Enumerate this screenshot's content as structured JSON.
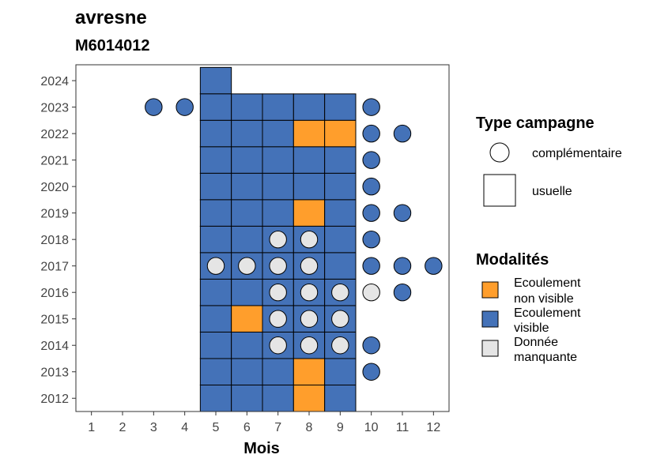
{
  "chart_data": {
    "type": "heatmap",
    "title": "avresne",
    "subtitle": "M6014012",
    "xlabel": "Mois",
    "ylabel": "",
    "x_ticks": [
      "1",
      "2",
      "3",
      "4",
      "5",
      "6",
      "7",
      "8",
      "9",
      "10",
      "11",
      "12"
    ],
    "y_ticks": [
      "2012",
      "2013",
      "2014",
      "2015",
      "2016",
      "2017",
      "2018",
      "2019",
      "2020",
      "2021",
      "2022",
      "2023",
      "2024"
    ],
    "xlim": [
      0.5,
      12.5
    ],
    "ylim": [
      2011.5,
      2024.6
    ],
    "grid": false,
    "legend_position": "right",
    "colors": {
      "Ecoulement non visible": "#FF9E2C",
      "Ecoulement visible": "#4472B8",
      "Donnée manquante": "#E5E5E5"
    },
    "legend": {
      "type_title": "Type campagne",
      "types": [
        {
          "shape": "circle",
          "label": "complémentaire"
        },
        {
          "shape": "square",
          "label": "usuelle"
        }
      ],
      "modalites_title": "Modalités",
      "modalites": [
        {
          "key": "Ecoulement non visible",
          "lines": [
            "Ecoulement",
            "non visible"
          ]
        },
        {
          "key": "Ecoulement visible",
          "lines": [
            "Ecoulement",
            "visible"
          ]
        },
        {
          "key": "Donnée manquante",
          "lines": [
            "Donnée",
            "manquante"
          ]
        }
      ]
    },
    "usuelle": [
      {
        "year": 2024,
        "months": [
          5
        ],
        "values": [
          "Ecoulement visible"
        ]
      },
      {
        "year": 2023,
        "months": [
          5,
          6,
          7,
          8,
          9
        ],
        "values": [
          "Ecoulement visible",
          "Ecoulement visible",
          "Ecoulement visible",
          "Ecoulement visible",
          "Ecoulement visible"
        ]
      },
      {
        "year": 2022,
        "months": [
          5,
          6,
          7,
          8,
          9
        ],
        "values": [
          "Ecoulement visible",
          "Ecoulement visible",
          "Ecoulement visible",
          "Ecoulement non visible",
          "Ecoulement non visible"
        ]
      },
      {
        "year": 2021,
        "months": [
          5,
          6,
          7,
          8,
          9
        ],
        "values": [
          "Ecoulement visible",
          "Ecoulement visible",
          "Ecoulement visible",
          "Ecoulement visible",
          "Ecoulement visible"
        ]
      },
      {
        "year": 2020,
        "months": [
          5,
          6,
          7,
          8,
          9
        ],
        "values": [
          "Ecoulement visible",
          "Ecoulement visible",
          "Ecoulement visible",
          "Ecoulement visible",
          "Ecoulement visible"
        ]
      },
      {
        "year": 2019,
        "months": [
          5,
          6,
          7,
          8,
          9
        ],
        "values": [
          "Ecoulement visible",
          "Ecoulement visible",
          "Ecoulement visible",
          "Ecoulement non visible",
          "Ecoulement visible"
        ]
      },
      {
        "year": 2018,
        "months": [
          5,
          6,
          7,
          8,
          9
        ],
        "values": [
          "Ecoulement visible",
          "Ecoulement visible",
          "Ecoulement visible",
          "Ecoulement visible",
          "Ecoulement visible"
        ]
      },
      {
        "year": 2017,
        "months": [
          5,
          6,
          7,
          8,
          9
        ],
        "values": [
          "Ecoulement visible",
          "Ecoulement visible",
          "Ecoulement visible",
          "Ecoulement visible",
          "Ecoulement visible"
        ]
      },
      {
        "year": 2016,
        "months": [
          5,
          6,
          7,
          8,
          9
        ],
        "values": [
          "Ecoulement visible",
          "Ecoulement visible",
          "Ecoulement visible",
          "Ecoulement visible",
          "Ecoulement visible"
        ]
      },
      {
        "year": 2015,
        "months": [
          5,
          6,
          7,
          8,
          9
        ],
        "values": [
          "Ecoulement visible",
          "Ecoulement non visible",
          "Ecoulement visible",
          "Ecoulement visible",
          "Ecoulement visible"
        ]
      },
      {
        "year": 2014,
        "months": [
          5,
          6,
          7,
          8,
          9
        ],
        "values": [
          "Ecoulement visible",
          "Ecoulement visible",
          "Ecoulement visible",
          "Ecoulement visible",
          "Ecoulement visible"
        ]
      },
      {
        "year": 2013,
        "months": [
          5,
          6,
          7,
          8,
          9
        ],
        "values": [
          "Ecoulement visible",
          "Ecoulement visible",
          "Ecoulement visible",
          "Ecoulement non visible",
          "Ecoulement visible"
        ]
      },
      {
        "year": 2012,
        "months": [
          5,
          6,
          7,
          8,
          9
        ],
        "values": [
          "Ecoulement visible",
          "Ecoulement visible",
          "Ecoulement visible",
          "Ecoulement non visible",
          "Ecoulement visible"
        ]
      }
    ],
    "complementaire": [
      {
        "year": 2023,
        "month": 3,
        "value": "Ecoulement visible"
      },
      {
        "year": 2023,
        "month": 4,
        "value": "Ecoulement visible"
      },
      {
        "year": 2023,
        "month": 10,
        "value": "Ecoulement visible"
      },
      {
        "year": 2022,
        "month": 10,
        "value": "Ecoulement visible"
      },
      {
        "year": 2022,
        "month": 11,
        "value": "Ecoulement visible"
      },
      {
        "year": 2021,
        "month": 10,
        "value": "Ecoulement visible"
      },
      {
        "year": 2020,
        "month": 10,
        "value": "Ecoulement visible"
      },
      {
        "year": 2019,
        "month": 10,
        "value": "Ecoulement visible"
      },
      {
        "year": 2019,
        "month": 11,
        "value": "Ecoulement visible"
      },
      {
        "year": 2018,
        "month": 7,
        "value": "Donnée manquante"
      },
      {
        "year": 2018,
        "month": 8,
        "value": "Donnée manquante"
      },
      {
        "year": 2018,
        "month": 10,
        "value": "Ecoulement visible"
      },
      {
        "year": 2017,
        "month": 5,
        "value": "Donnée manquante"
      },
      {
        "year": 2017,
        "month": 6,
        "value": "Donnée manquante"
      },
      {
        "year": 2017,
        "month": 7,
        "value": "Donnée manquante"
      },
      {
        "year": 2017,
        "month": 8,
        "value": "Donnée manquante"
      },
      {
        "year": 2017,
        "month": 10,
        "value": "Ecoulement visible"
      },
      {
        "year": 2017,
        "month": 11,
        "value": "Ecoulement visible"
      },
      {
        "year": 2017,
        "month": 12,
        "value": "Ecoulement visible"
      },
      {
        "year": 2016,
        "month": 7,
        "value": "Donnée manquante"
      },
      {
        "year": 2016,
        "month": 8,
        "value": "Donnée manquante"
      },
      {
        "year": 2016,
        "month": 9,
        "value": "Donnée manquante"
      },
      {
        "year": 2016,
        "month": 10,
        "value": "Donnée manquante"
      },
      {
        "year": 2016,
        "month": 11,
        "value": "Ecoulement visible"
      },
      {
        "year": 2015,
        "month": 7,
        "value": "Donnée manquante"
      },
      {
        "year": 2015,
        "month": 8,
        "value": "Donnée manquante"
      },
      {
        "year": 2015,
        "month": 9,
        "value": "Donnée manquante"
      },
      {
        "year": 2014,
        "month": 7,
        "value": "Donnée manquante"
      },
      {
        "year": 2014,
        "month": 8,
        "value": "Donnée manquante"
      },
      {
        "year": 2014,
        "month": 9,
        "value": "Donnée manquante"
      },
      {
        "year": 2014,
        "month": 10,
        "value": "Ecoulement visible"
      },
      {
        "year": 2013,
        "month": 10,
        "value": "Ecoulement visible"
      }
    ]
  }
}
